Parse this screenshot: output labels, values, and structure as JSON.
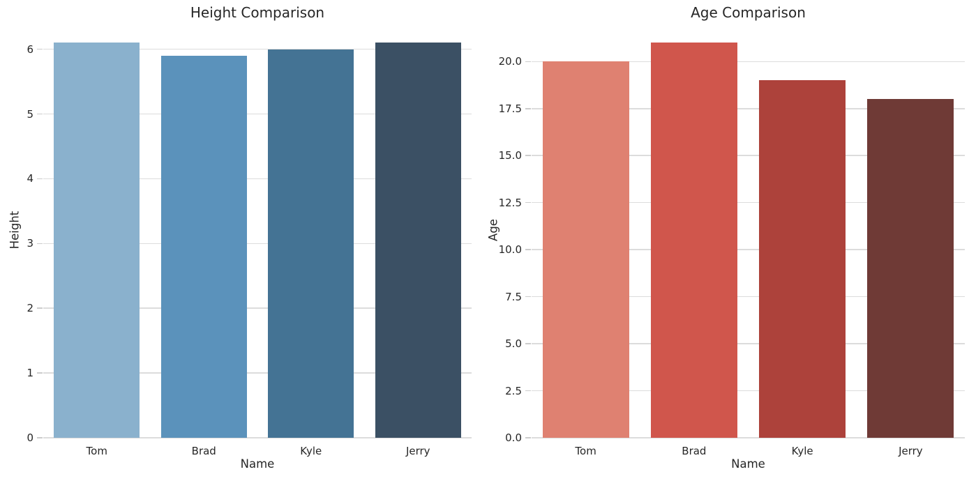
{
  "figure": {
    "background": "#ffffff",
    "colors": {
      "grid": "#dcdcdc",
      "tick_mark": "#cccccc",
      "text": "#262626"
    }
  },
  "chart_data": [
    {
      "type": "bar",
      "title": "Height Comparison",
      "xlabel": "Name",
      "ylabel": "Height",
      "categories": [
        "Tom",
        "Brad",
        "Kyle",
        "Jerry"
      ],
      "values": [
        6.1,
        5.9,
        6.0,
        6.1
      ],
      "bar_colors": [
        "#8ab1cd",
        "#5b92bb",
        "#447394",
        "#3b5064"
      ],
      "yticks": [
        0,
        1,
        2,
        3,
        4,
        5,
        6
      ],
      "ytick_labels": [
        "0",
        "1",
        "2",
        "3",
        "4",
        "5",
        "6"
      ],
      "ylim": [
        0,
        6.405
      ],
      "grid": true,
      "legend": null,
      "bar_width_fraction": 0.8
    },
    {
      "type": "bar",
      "title": "Age Comparison",
      "xlabel": "Name",
      "ylabel": "Age",
      "categories": [
        "Tom",
        "Brad",
        "Kyle",
        "Jerry"
      ],
      "values": [
        20,
        21,
        19,
        18
      ],
      "bar_colors": [
        "#df8171",
        "#d0564c",
        "#ad423b",
        "#6f3a36"
      ],
      "yticks": [
        0,
        2.5,
        5,
        7.5,
        10,
        12.5,
        15,
        17.5,
        20
      ],
      "ytick_labels": [
        "0.0",
        "2.5",
        "5.0",
        "7.5",
        "10.0",
        "12.5",
        "15.0",
        "17.5",
        "20.0"
      ],
      "ylim": [
        0,
        22.05
      ],
      "grid": true,
      "legend": null,
      "bar_width_fraction": 0.8
    }
  ]
}
